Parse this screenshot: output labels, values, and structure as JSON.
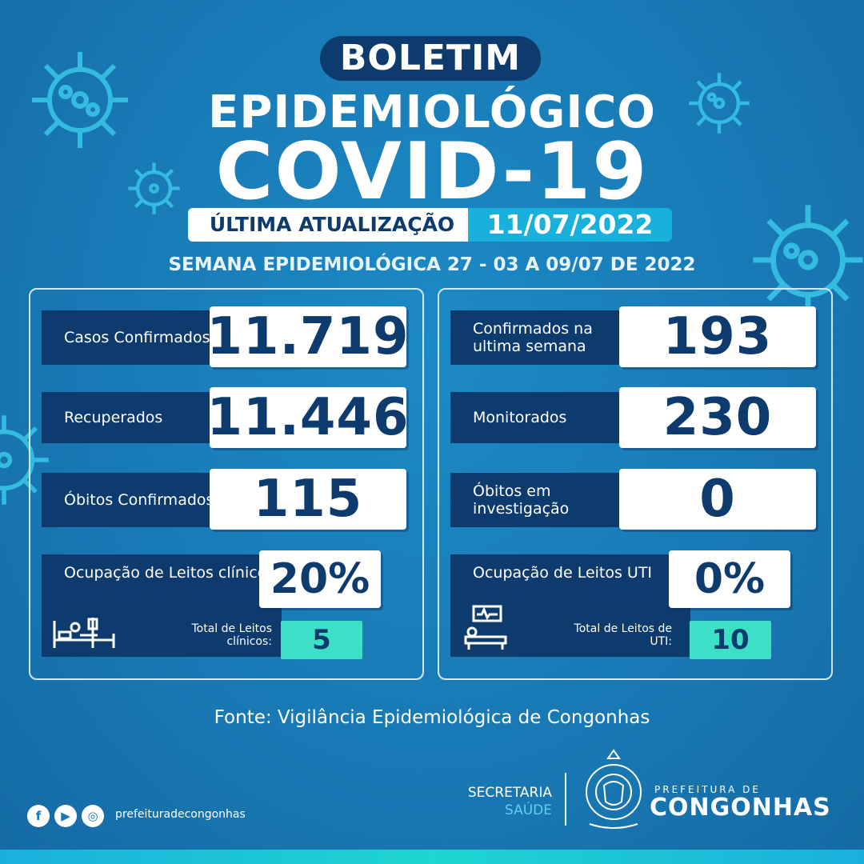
{
  "header": {
    "boletim": "BOLETIM",
    "epidemiologico": "EPIDEMIOLÓGICO",
    "covid": "COVID-19",
    "update_label": "ÚLTIMA ATUALIZAÇÃO",
    "update_date": "11/07/2022",
    "semana": "SEMANA EPIDEMIOLÓGICA 27 - 03 A 09/07 DE 2022"
  },
  "left": {
    "casos": {
      "label": "Casos Confirmados",
      "value": "11.719"
    },
    "recuperados": {
      "label": "Recuperados",
      "value": "11.446"
    },
    "obitos": {
      "label": "Óbitos Confirmados",
      "value": "115"
    },
    "leitos": {
      "label": "Ocupação de Leitos clínicos",
      "value": "20%"
    },
    "total": {
      "label": "Total de Leitos clínicos:",
      "value": "5"
    }
  },
  "right": {
    "confirmados_semana": {
      "label": "Confirmados na ultima semana",
      "value": "193"
    },
    "monitorados": {
      "label": "Monitorados",
      "value": "230"
    },
    "obitos_invest": {
      "label": "Óbitos em investigação",
      "value": "0"
    },
    "leitos_uti": {
      "label": "Ocupação de Leitos UTI",
      "value": "0%"
    },
    "total_uti": {
      "label": "Total de Leitos de UTI:",
      "value": "10"
    }
  },
  "fonte": "Fonte: Vigilância Epidemiológica de Congonhas",
  "footer": {
    "social_icons": [
      "facebook-icon",
      "youtube-icon",
      "instagram-icon"
    ],
    "handle": "prefeituradecongonhas",
    "secretaria": "SECRETARIA",
    "saude": "SAÚDE",
    "prefeitura": "PREFEITURA DE",
    "congonhas": "CONGONHAS"
  },
  "colors": {
    "background": "#1878b3",
    "navy": "#0e3b6e",
    "accent_cyan": "#1ab0dc",
    "accent_green": "#3de0c6"
  }
}
